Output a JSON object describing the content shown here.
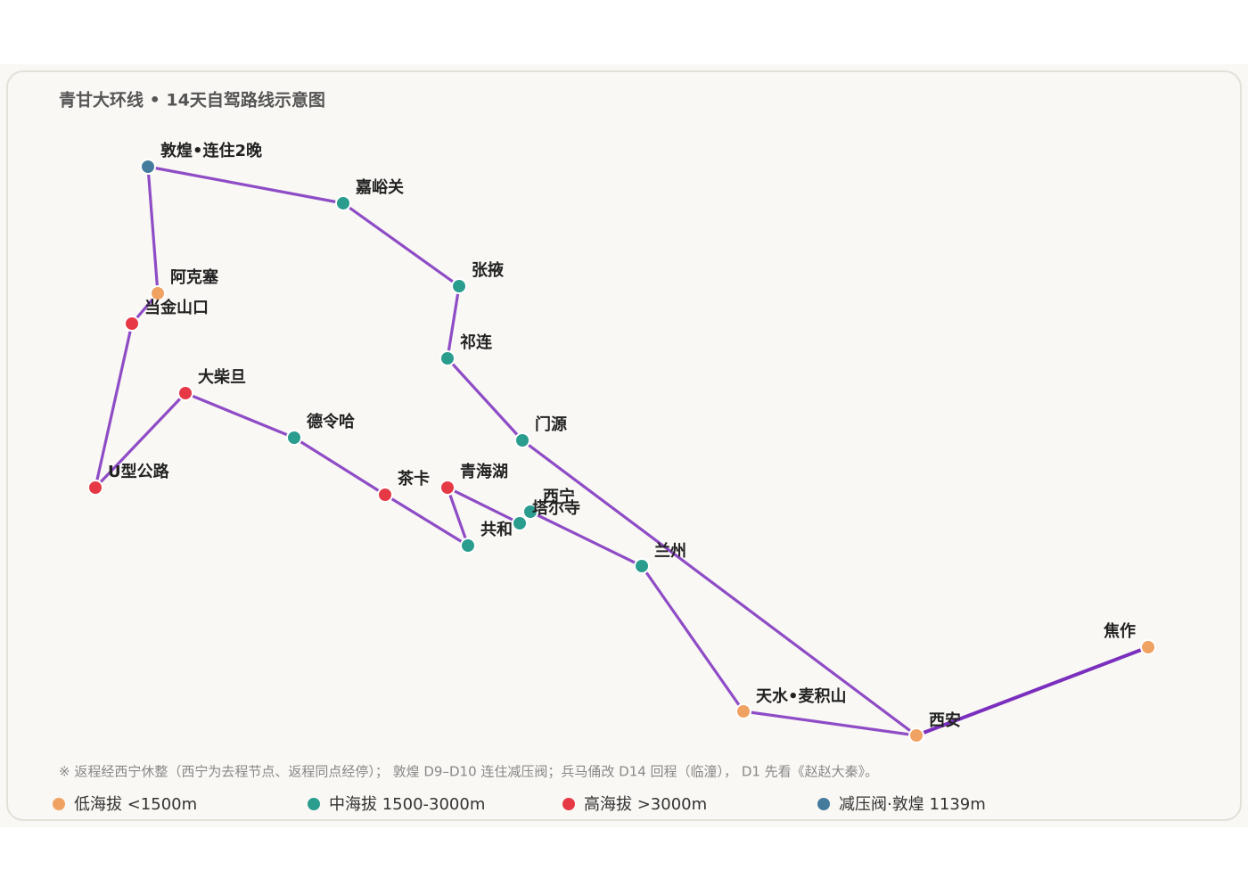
{
  "header": {
    "title": "青甘大环线 • 14天自驾路线示意图"
  },
  "nodes": [
    {
      "label": "敦煌•连住2晚"
    },
    {
      "label": "嘉峪关"
    },
    {
      "label": "张掖"
    },
    {
      "label": "祁连"
    },
    {
      "label": "门源"
    },
    {
      "label": "阿克塞"
    },
    {
      "label": "当金山口"
    },
    {
      "label": "大柴旦"
    },
    {
      "label": "德令哈"
    },
    {
      "label": "U型公路"
    },
    {
      "label": "茶卡"
    },
    {
      "label": "青海湖"
    },
    {
      "label": "西宁"
    },
    {
      "label": "塔尔寺"
    },
    {
      "label": "共和"
    },
    {
      "label": "兰州"
    },
    {
      "label": "焦作"
    },
    {
      "label": "天水•麦积山"
    },
    {
      "label": "西安"
    }
  ],
  "note": "※ 返程经西宁休整（西宁为去程节点、返程同点经停）； 敦煌 D9–D10 连住减压阀；兵马俑改 D14 回程（临潼）， D1 先看《赵赵大秦》。",
  "legend": [
    {
      "label": "低海拔 <1500m",
      "color": "#f0a262"
    },
    {
      "label": "中海拔 1500-3000m",
      "color": "#2a9d8f"
    },
    {
      "label": "高海拔 >3000m",
      "color": "#e63946"
    },
    {
      "label": "减压阀·敦煌 1139m",
      "color": "#457b9d"
    }
  ]
}
